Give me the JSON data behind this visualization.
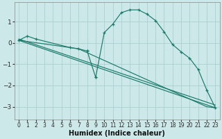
{
  "xlabel": "Humidex (Indice chaleur)",
  "background_color": "#cce8e8",
  "grid_color": "#aacfcf",
  "line_color": "#1a7a6a",
  "xlim": [
    -0.5,
    23.5
  ],
  "ylim": [
    -3.6,
    1.9
  ],
  "yticks": [
    -3,
    -2,
    -1,
    0,
    1
  ],
  "xticks": [
    0,
    1,
    2,
    3,
    4,
    5,
    6,
    7,
    8,
    9,
    10,
    11,
    12,
    13,
    14,
    15,
    16,
    17,
    18,
    19,
    20,
    21,
    22,
    23
  ],
  "curve_x": [
    0,
    1,
    2,
    6,
    7,
    8,
    9,
    10,
    11,
    12,
    13,
    14,
    15,
    16,
    17,
    18,
    19,
    20,
    21,
    22,
    23
  ],
  "curve_y": [
    0.12,
    0.32,
    0.18,
    -0.22,
    -0.28,
    -0.38,
    -1.62,
    0.48,
    0.88,
    1.42,
    1.55,
    1.55,
    1.35,
    1.05,
    0.52,
    -0.08,
    -0.42,
    -0.72,
    -1.25,
    -2.22,
    -3.05
  ],
  "line1_x": [
    0,
    23
  ],
  "line1_y": [
    0.12,
    -3.05
  ],
  "line2_x": [
    0,
    23
  ],
  "line2_y": [
    0.18,
    -2.92
  ],
  "line3_x": [
    0,
    6,
    7,
    22,
    23
  ],
  "line3_y": [
    0.12,
    -0.22,
    -0.28,
    -3.0,
    -3.05
  ],
  "xlabel_fontsize": 7,
  "tick_fontsize": 5.5
}
